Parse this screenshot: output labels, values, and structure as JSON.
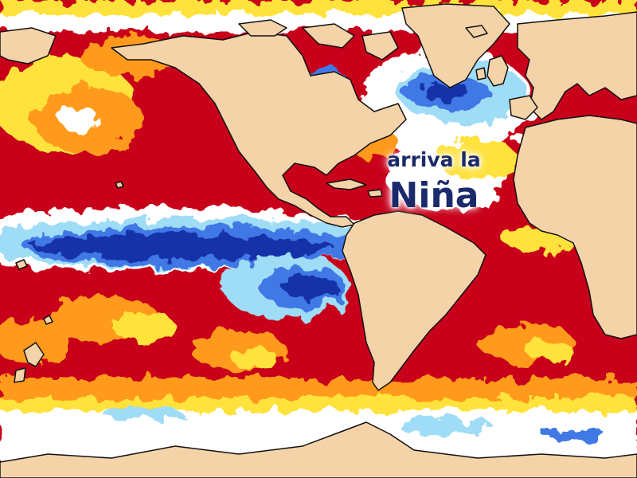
{
  "headline": {
    "line1": "arriva la",
    "line2": "Niña"
  },
  "colors": {
    "land": "#f4d3a8",
    "coast": "#111111",
    "anomaly_very_warm": "#c8001a",
    "anomaly_warm": "#f03a10",
    "anomaly_mild_warm": "#ff9a1a",
    "anomaly_slight_warm": "#ffe23a",
    "anomaly_neutral": "#ffffff",
    "anomaly_slight_cool": "#9fdcf5",
    "anomaly_cool": "#3f78e6",
    "anomaly_very_cool": "#1230a8",
    "headline_text": "#1b2a6b"
  }
}
